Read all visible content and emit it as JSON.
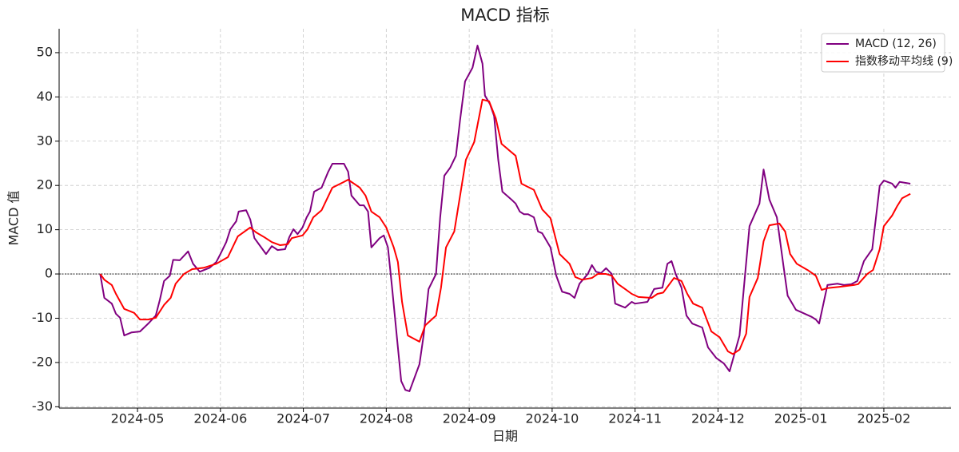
{
  "chart_data": {
    "type": "line",
    "title": "MACD 指标",
    "x_label": "日期",
    "y_label": "MACD 值",
    "xlim": [
      4.055,
      14.81
    ],
    "xticks": [
      {
        "value": 5,
        "label": "2024-05"
      },
      {
        "value": 6,
        "label": "2024-06"
      },
      {
        "value": 7,
        "label": "2024-07"
      },
      {
        "value": 8,
        "label": "2024-08"
      },
      {
        "value": 9,
        "label": "2024-09"
      },
      {
        "value": 10,
        "label": "2024-10"
      },
      {
        "value": 11,
        "label": "2024-11"
      },
      {
        "value": 12,
        "label": "2024-12"
      },
      {
        "value": 13,
        "label": "2025-01"
      },
      {
        "value": 14,
        "label": "2025-02"
      }
    ],
    "ylim": [
      -30.3,
      55.4
    ],
    "yticks": [
      -30,
      -20,
      -10,
      0,
      10,
      20,
      30,
      40,
      50
    ],
    "grid": true,
    "hline": 0,
    "legend": "upper right",
    "series": [
      {
        "name": "MACD (12, 26)",
        "color": "#800080",
        "x": [
          4.55,
          4.6,
          4.69,
          4.74,
          4.79,
          4.84,
          4.93,
          5.03,
          5.13,
          5.22,
          5.27,
          5.32,
          5.39,
          5.43,
          5.51,
          5.61,
          5.67,
          5.75,
          5.87,
          5.95,
          6.0,
          6.07,
          6.12,
          6.19,
          6.22,
          6.31,
          6.36,
          6.41,
          6.48,
          6.55,
          6.62,
          6.69,
          6.78,
          6.83,
          6.88,
          6.93,
          6.99,
          7.04,
          7.08,
          7.13,
          7.22,
          7.3,
          7.35,
          7.49,
          7.54,
          7.58,
          7.68,
          7.73,
          7.78,
          7.82,
          7.92,
          7.97,
          8.02,
          8.07,
          8.14,
          8.18,
          8.23,
          8.28,
          8.4,
          8.45,
          8.51,
          8.6,
          8.65,
          8.7,
          8.77,
          8.84,
          8.89,
          8.95,
          9.04,
          9.1,
          9.16,
          9.19,
          9.25,
          9.3,
          9.35,
          9.4,
          9.51,
          9.56,
          9.61,
          9.66,
          9.71,
          9.78,
          9.83,
          9.88,
          9.98,
          10.05,
          10.12,
          10.21,
          10.27,
          10.33,
          10.43,
          10.48,
          10.53,
          10.59,
          10.65,
          10.72,
          10.76,
          10.88,
          10.96,
          11.0,
          11.15,
          11.23,
          11.33,
          11.39,
          11.44,
          11.49,
          11.56,
          11.62,
          11.69,
          11.81,
          11.88,
          11.98,
          12.07,
          12.14,
          12.26,
          12.38,
          12.5,
          12.55,
          12.62,
          12.71,
          12.79,
          12.84,
          12.94,
          13.13,
          13.18,
          13.22,
          13.32,
          13.44,
          13.52,
          13.61,
          13.68,
          13.76,
          13.86,
          13.95,
          14.0,
          14.1,
          14.14,
          14.19,
          14.32
        ],
        "values": [
          0,
          -5.4,
          -6.7,
          -9.0,
          -9.9,
          -13.9,
          -13.2,
          -13.0,
          -11.2,
          -9.4,
          -5.8,
          -1.6,
          -0.4,
          3.2,
          3.1,
          5.1,
          2.3,
          0.5,
          1.4,
          2.7,
          4.5,
          7.2,
          10.1,
          11.9,
          14.1,
          14.4,
          12.3,
          8.1,
          6.3,
          4.5,
          6.3,
          5.4,
          5.6,
          8.3,
          10.1,
          9.0,
          10.5,
          12.8,
          14.1,
          18.6,
          19.5,
          23.1,
          24.9,
          24.9,
          23.1,
          17.7,
          15.5,
          15.5,
          14.1,
          6.0,
          8.1,
          8.7,
          6.0,
          -3.1,
          -16.6,
          -24.2,
          -26.2,
          -26.5,
          -20.4,
          -13.9,
          -3.4,
          0,
          12.8,
          22.2,
          24.0,
          26.7,
          34.8,
          43.5,
          46.6,
          51.6,
          47.5,
          40.3,
          38.4,
          35.7,
          25.8,
          18.6,
          16.8,
          15.9,
          14.1,
          13.5,
          13.5,
          12.8,
          9.6,
          9.2,
          6.0,
          -0.4,
          -4.0,
          -4.5,
          -5.4,
          -2.2,
          0,
          2.0,
          0.5,
          0.2,
          1.3,
          0,
          -6.7,
          -7.6,
          -6.3,
          -6.7,
          -6.3,
          -3.4,
          -3.1,
          2.3,
          2.9,
          0,
          -3.1,
          -9.4,
          -11.2,
          -12.1,
          -16.6,
          -19.0,
          -20.2,
          -22.0,
          -13.9,
          10.8,
          15.9,
          23.6,
          16.8,
          12.8,
          1.8,
          -4.9,
          -8.1,
          -9.7,
          -10.3,
          -11.2,
          -2.5,
          -2.2,
          -2.5,
          -2.3,
          -1.6,
          2.9,
          5.6,
          19.9,
          21.1,
          20.4,
          19.5,
          20.8,
          20.4
        ]
      },
      {
        "name": "指数移动平均线 (9)",
        "color": "#ff0000",
        "x": [
          4.55,
          4.6,
          4.69,
          4.74,
          4.84,
          4.96,
          5.03,
          5.13,
          5.22,
          5.32,
          5.4,
          5.46,
          5.56,
          5.66,
          5.8,
          5.95,
          6.09,
          6.21,
          6.36,
          6.43,
          6.53,
          6.62,
          6.72,
          6.81,
          6.86,
          6.99,
          7.05,
          7.12,
          7.22,
          7.35,
          7.49,
          7.54,
          7.68,
          7.75,
          7.82,
          7.92,
          8.0,
          8.09,
          8.14,
          8.19,
          8.26,
          8.4,
          8.47,
          8.6,
          8.66,
          8.72,
          8.82,
          8.96,
          9.06,
          9.16,
          9.24,
          9.32,
          9.39,
          9.56,
          9.63,
          9.78,
          9.88,
          9.98,
          10.09,
          10.21,
          10.28,
          10.36,
          10.48,
          10.55,
          10.65,
          10.72,
          10.79,
          10.88,
          10.96,
          11.04,
          11.2,
          11.27,
          11.34,
          11.47,
          11.56,
          11.63,
          11.7,
          11.81,
          11.92,
          12.02,
          12.12,
          12.18,
          12.26,
          12.34,
          12.38,
          12.48,
          12.55,
          12.62,
          12.74,
          12.81,
          12.87,
          12.95,
          13.08,
          13.18,
          13.25,
          13.32,
          13.47,
          13.64,
          13.69,
          13.8,
          13.87,
          13.95,
          14.0,
          14.1,
          14.16,
          14.22,
          14.32
        ],
        "values": [
          0,
          -1.3,
          -2.5,
          -4.5,
          -7.9,
          -8.8,
          -10.3,
          -10.3,
          -9.9,
          -7.0,
          -5.4,
          -2.2,
          0,
          1.1,
          1.4,
          2.3,
          3.8,
          8.5,
          10.5,
          9.4,
          8.3,
          7.2,
          6.5,
          6.7,
          8.1,
          8.7,
          10.1,
          12.8,
          14.4,
          19.5,
          20.8,
          21.3,
          19.5,
          17.7,
          14.1,
          12.8,
          10.5,
          6.0,
          2.7,
          -6.3,
          -13.9,
          -15.3,
          -11.6,
          -9.4,
          -3.1,
          6.0,
          9.6,
          25.8,
          29.8,
          39.4,
          39.0,
          35.2,
          29.4,
          26.7,
          20.4,
          19.0,
          14.6,
          12.6,
          4.5,
          2.3,
          -0.7,
          -1.3,
          -0.9,
          0,
          0,
          -0.4,
          -2.2,
          -3.4,
          -4.5,
          -5.2,
          -5.4,
          -4.5,
          -4.2,
          -0.9,
          -1.6,
          -4.5,
          -6.7,
          -7.6,
          -13.0,
          -14.3,
          -17.5,
          -18.1,
          -17.1,
          -13.5,
          -5.2,
          -0.9,
          7.4,
          11.0,
          11.4,
          9.6,
          4.5,
          2.3,
          0.9,
          -0.4,
          -3.6,
          -3.2,
          -2.9,
          -2.5,
          -2.3,
          0,
          0.9,
          5.6,
          10.8,
          13.2,
          15.3,
          17.1,
          18.1
        ]
      }
    ]
  }
}
